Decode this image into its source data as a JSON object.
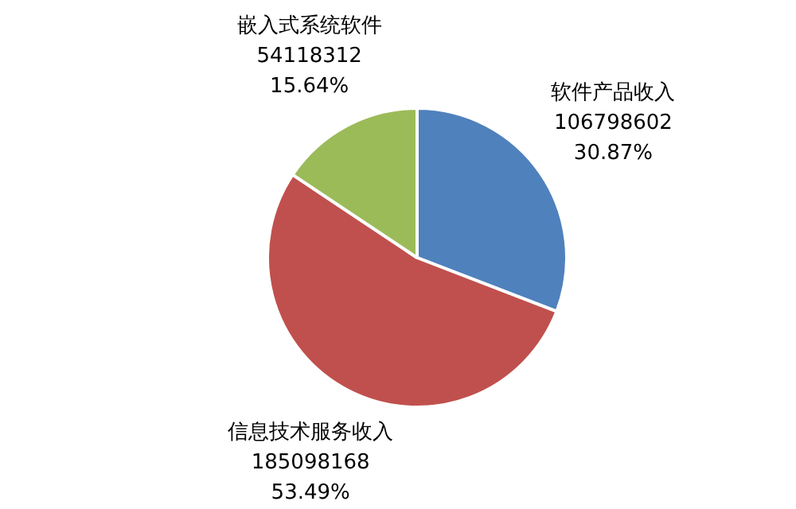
{
  "chart_data": {
    "type": "pie",
    "categories": [
      "软件产品收入",
      "信息技术服务收入",
      "嵌入式系统软件"
    ],
    "values": [
      106798602,
      185098168,
      54118312
    ],
    "value_labels": [
      "106798602\n30.87%",
      "185098168\n53.49%",
      "54118312\n15.64%"
    ],
    "colors": [
      "#4f81bd",
      "#c0504d",
      "#9bbb59"
    ],
    "legend": false
  }
}
